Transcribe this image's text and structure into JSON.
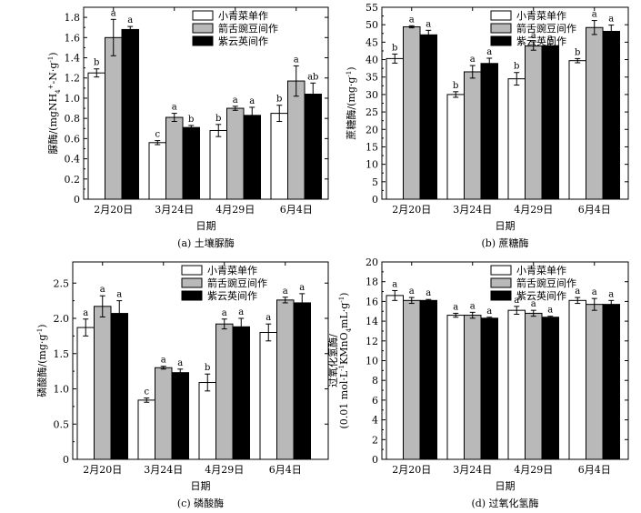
{
  "chart_data": [
    {
      "panel": "a",
      "type": "bar",
      "caption": "(a) 土壤脲酶",
      "xlabel": "日期",
      "ylabel": "脲酶/(mgNH4+-N·g-1)",
      "ylabel_parts": {
        "pre": "脲酶/(mgNH",
        "sub": "4",
        "sup1": "+",
        "mid": "-N·g",
        "sup2": "-1",
        "post": ")"
      },
      "categories": [
        "2月20日",
        "3月24日",
        "4月29日",
        "6月4日"
      ],
      "ylim": [
        0,
        1.9
      ],
      "yticks": [
        "0",
        "0.2",
        "0.4",
        "0.6",
        "0.8",
        "1.0",
        "1.2",
        "1.4",
        "1.6",
        "1.8"
      ],
      "tick_values": [
        0,
        0.2,
        0.4,
        0.6,
        0.8,
        1.0,
        1.2,
        1.4,
        1.6,
        1.8
      ],
      "legend_position": "top-right",
      "series": [
        {
          "name": "小青菜单作",
          "values": [
            1.25,
            0.56,
            0.68,
            0.85
          ],
          "errors": [
            0.04,
            0.02,
            0.06,
            0.08
          ],
          "letters": [
            "b",
            "c",
            "b",
            "b"
          ]
        },
        {
          "name": "箭舌豌豆间作",
          "values": [
            1.6,
            0.81,
            0.9,
            1.17
          ],
          "errors": [
            0.18,
            0.04,
            0.02,
            0.15
          ],
          "letters": [
            "a",
            "a",
            "a",
            "a"
          ]
        },
        {
          "name": "紫云英间作",
          "values": [
            1.68,
            0.71,
            0.83,
            1.04
          ],
          "errors": [
            0.03,
            0.02,
            0.08,
            0.11
          ],
          "letters": [
            "a",
            "b",
            "a",
            "ab"
          ]
        }
      ]
    },
    {
      "panel": "b",
      "type": "bar",
      "caption": "(b) 蔗糖酶",
      "xlabel": "日期",
      "ylabel": "蔗糖酶/(mg·g-1)",
      "ylabel_parts": {
        "pre": "蔗糖酶/(mg·g",
        "sup1": "-1",
        "post": ")"
      },
      "categories": [
        "2月20日",
        "3月24日",
        "4月29日",
        "6月4日"
      ],
      "ylim": [
        0,
        55
      ],
      "yticks": [
        "0",
        "5",
        "10",
        "15",
        "20",
        "25",
        "30",
        "35",
        "40",
        "45",
        "50",
        "55"
      ],
      "tick_values": [
        0,
        5,
        10,
        15,
        20,
        25,
        30,
        35,
        40,
        45,
        50,
        55
      ],
      "legend_position": "top-right",
      "series": [
        {
          "name": "小青菜单作",
          "values": [
            40.3,
            30.0,
            34.5,
            39.7
          ],
          "errors": [
            1.3,
            0.8,
            1.8,
            0.6
          ],
          "letters": [
            "b",
            "b",
            "b",
            "b"
          ]
        },
        {
          "name": "箭舌豌豆间作",
          "values": [
            49.4,
            36.5,
            43.9,
            49.2
          ],
          "errors": [
            0.3,
            1.8,
            1.2,
            2.0
          ],
          "letters": [
            "a",
            "a",
            "a",
            "a"
          ]
        },
        {
          "name": "紫云英间作",
          "values": [
            47.1,
            38.9,
            44.0,
            48.1
          ],
          "errors": [
            1.3,
            1.5,
            0.5,
            1.8
          ],
          "letters": [
            "a",
            "a",
            "a",
            "a"
          ]
        }
      ]
    },
    {
      "panel": "c",
      "type": "bar",
      "caption": "(c) 磷酸酶",
      "xlabel": "日期",
      "ylabel": "磷酸酶/(mg·g-1)",
      "ylabel_parts": {
        "pre": "磷酸酶/(mg·g",
        "sup1": "-1",
        "post": ")"
      },
      "categories": [
        "2月20日",
        "3月24日",
        "4月29日",
        "6月4日"
      ],
      "ylim": [
        0,
        2.8
      ],
      "yticks": [
        "0",
        "0.5",
        "1.0",
        "1.5",
        "2.0",
        "2.5"
      ],
      "tick_values": [
        0,
        0.5,
        1.0,
        1.5,
        2.0,
        2.5
      ],
      "legend_position": "top-right",
      "series": [
        {
          "name": "小青菜单作",
          "values": [
            1.87,
            0.84,
            1.09,
            1.8
          ],
          "errors": [
            0.12,
            0.03,
            0.12,
            0.12
          ],
          "letters": [
            "a",
            "c",
            "b",
            "a"
          ]
        },
        {
          "name": "箭舌豌豆间作",
          "values": [
            2.17,
            1.3,
            1.92,
            2.26
          ],
          "errors": [
            0.15,
            0.02,
            0.07,
            0.04
          ],
          "letters": [
            "a",
            "a",
            "a",
            "a"
          ]
        },
        {
          "name": "紫云英间作",
          "values": [
            2.07,
            1.23,
            1.88,
            2.22
          ],
          "errors": [
            0.18,
            0.05,
            0.12,
            0.13
          ],
          "letters": [
            "a",
            "a",
            "a",
            "a"
          ]
        }
      ]
    },
    {
      "panel": "d",
      "type": "bar",
      "caption": "(d) 过氧化氢酶",
      "xlabel": "日期",
      "ylabel": "过氧化氢酶/(0.01 mol·L-1KMnO4mL·g-1)",
      "ylabel_line1": "过氧化氢酶/",
      "ylabel_parts": {
        "pre": "(0.01 mol·L",
        "sup1": "-1",
        "mid": "KMnO",
        "sub": "4",
        "mid2": "mL·g",
        "sup2": "-1",
        "post": ")"
      },
      "categories": [
        "2月20日",
        "3月24日",
        "4月29日",
        "6月4日"
      ],
      "ylim": [
        0,
        20
      ],
      "yticks": [
        "0",
        "2",
        "4",
        "6",
        "8",
        "10",
        "12",
        "14",
        "16",
        "18",
        "20"
      ],
      "tick_values": [
        0,
        2,
        4,
        6,
        8,
        10,
        12,
        14,
        16,
        18,
        20
      ],
      "legend_position": "top-right",
      "series": [
        {
          "name": "小青菜单作",
          "values": [
            16.6,
            14.6,
            15.1,
            16.1
          ],
          "errors": [
            0.5,
            0.2,
            0.4,
            0.3
          ],
          "letters": [
            "a",
            "a",
            "a",
            "a"
          ]
        },
        {
          "name": "箭舌豌豆间作",
          "values": [
            16.1,
            14.6,
            14.8,
            15.7
          ],
          "errors": [
            0.3,
            0.3,
            0.3,
            0.6
          ],
          "letters": [
            "a",
            "a",
            "a",
            "a"
          ]
        },
        {
          "name": "紫云英间作",
          "values": [
            16.1,
            14.3,
            14.4,
            15.7
          ],
          "errors": [
            0.1,
            0.1,
            0.1,
            0.4
          ],
          "letters": [
            "a",
            "a",
            "a",
            "a"
          ]
        }
      ]
    }
  ],
  "colors": {
    "小青菜单作": "#ffffff",
    "箭舌豌豆间作": "#b9b9b9",
    "紫云英间作": "#000000"
  }
}
